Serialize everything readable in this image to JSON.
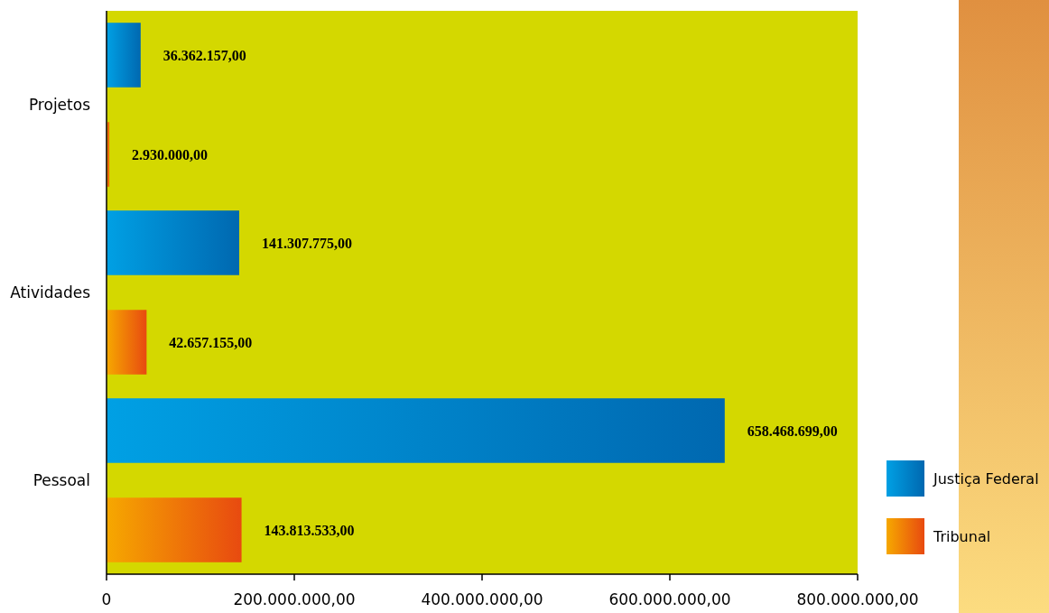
{
  "chart_data": {
    "type": "bar",
    "orientation": "horizontal",
    "categories": [
      "Projetos",
      "Atividades",
      "Pessoal"
    ],
    "series": [
      {
        "name": "Justiça Federal",
        "color": "#0068b0",
        "values": [
          36362157,
          141307775,
          658468699
        ],
        "value_labels": [
          "36.362.157,00",
          "141.307.775,00",
          "658.468.699,00"
        ]
      },
      {
        "name": "Tribunal",
        "color": "#e84a10",
        "values": [
          2930000,
          42657155,
          143813533
        ],
        "value_labels": [
          "2.930.000,00",
          "42.657.155,00",
          "143.813.533,00"
        ]
      }
    ],
    "xlim": [
      0,
      800000000
    ],
    "xticks": [
      0,
      {
        "value": 200000000,
        "label": "200.000.000,00"
      },
      {
        "value": 400000000,
        "label": "400.000.000,00"
      },
      {
        "value": 600000000,
        "label": "600.000.000,00"
      },
      {
        "value": 800000000,
        "label": "800.000.000,00"
      }
    ],
    "grid": false,
    "legend": "bottom right"
  }
}
